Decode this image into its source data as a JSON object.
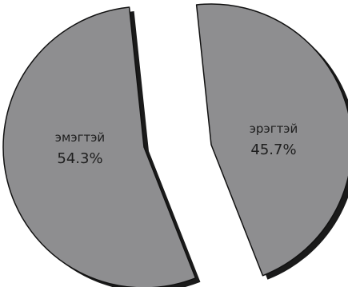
{
  "chart_data": {
    "type": "pie",
    "style": "exploded 3d pie with drop shadow",
    "title": "",
    "slices": [
      {
        "label": "эмэгтэй",
        "value": 54.3,
        "display_value": "54.3%",
        "color": "#8e8e90"
      },
      {
        "label": "эрэгтэй",
        "value": 45.7,
        "display_value": "45.7%",
        "color": "#8e8e90"
      }
    ],
    "colors": {
      "slice_fill": "#8e8e90",
      "slice_edge": "#111111",
      "shadow": "#1a1a1a",
      "text": "#1e1e1e",
      "background": "#ffffff"
    }
  }
}
